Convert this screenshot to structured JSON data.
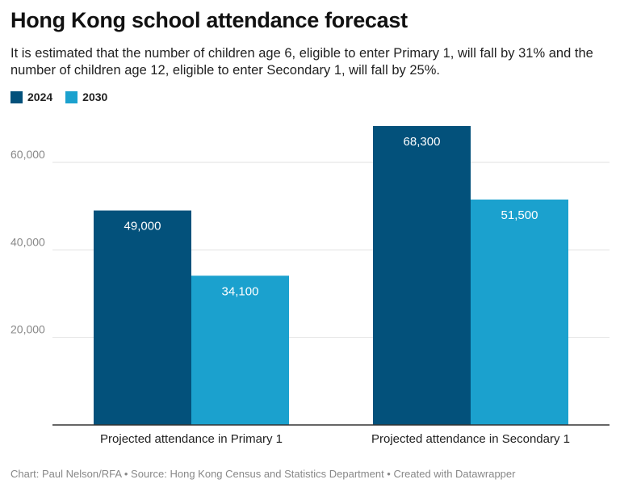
{
  "title": "Hong Kong school attendance forecast",
  "subtitle": "It is estimated that the number of children age 6, eligible to enter Primary 1, will fall by 31% and the number of children age 12, eligible to enter Secondary 1, will fall by 25%.",
  "footer": "Chart: Paul Nelson/RFA • Source: Hong Kong Census and Statistics Department • Created with Datawrapper",
  "colors": {
    "2024": "#03517b",
    "2030": "#1ba1ce",
    "grid": "#e2e2e2",
    "axis": "#333333",
    "tick_text": "#888888"
  },
  "chart_data": {
    "type": "bar",
    "title": "Hong Kong school attendance forecast",
    "categories": [
      "Projected attendance in Primary 1",
      "Projected attendance in Secondary 1"
    ],
    "series": [
      {
        "name": "2024",
        "values": [
          49000,
          68300
        ],
        "labels": [
          "49,000",
          "68,300"
        ]
      },
      {
        "name": "2030",
        "values": [
          34100,
          51500
        ],
        "labels": [
          "34,100",
          "51,500"
        ]
      }
    ],
    "yticks": [
      20000,
      40000,
      60000
    ],
    "ytick_labels": [
      "20,000",
      "40,000",
      "60,000"
    ],
    "ylim": [
      0,
      68300
    ],
    "grid": true,
    "legend": "top-left"
  }
}
